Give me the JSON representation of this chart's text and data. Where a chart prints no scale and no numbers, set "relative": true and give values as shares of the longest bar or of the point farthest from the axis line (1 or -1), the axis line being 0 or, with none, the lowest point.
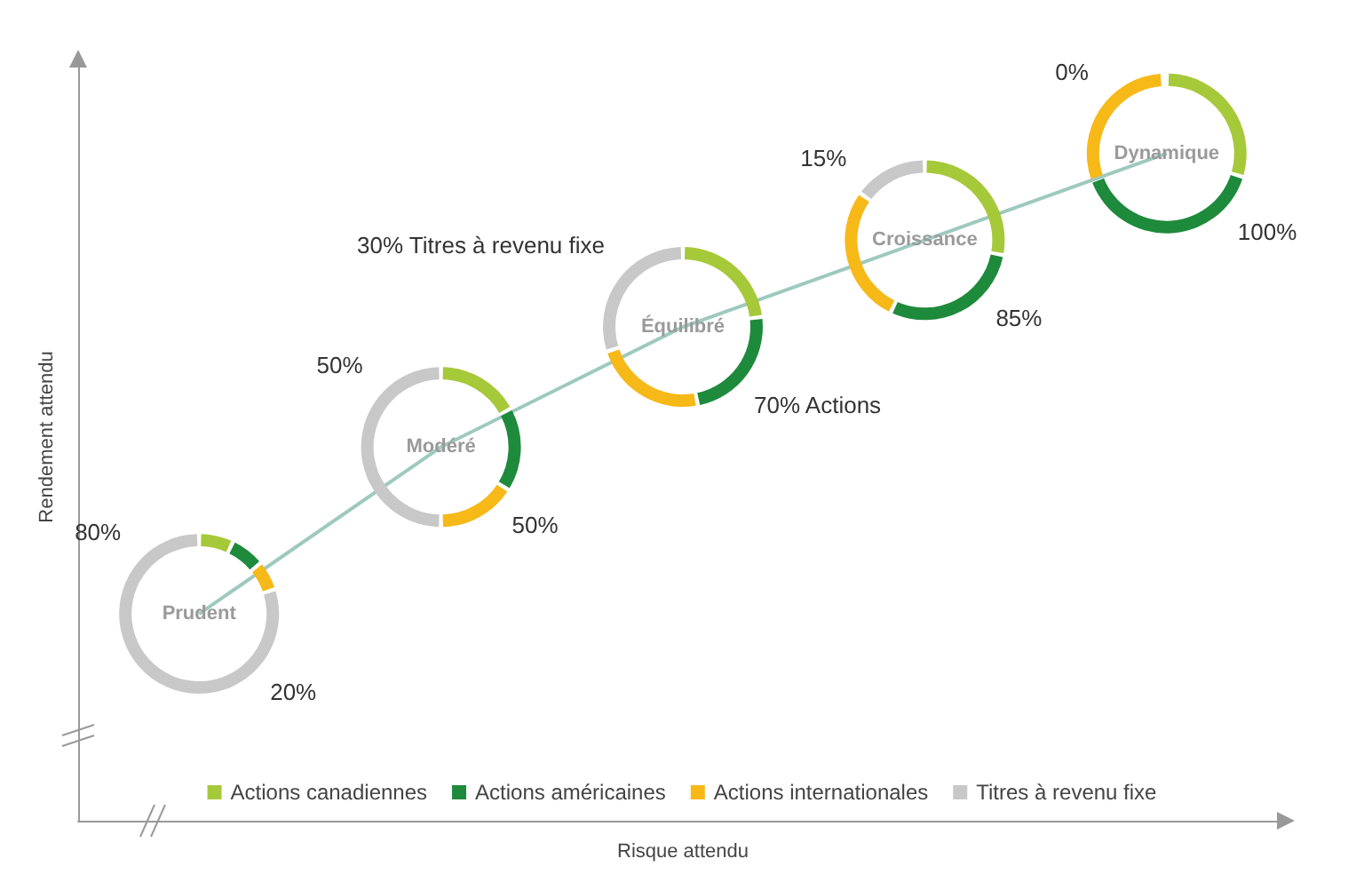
{
  "chart_data": [
    {
      "type": "line",
      "relative": true,
      "xlabel": "Risque attendu",
      "ylabel": "Rendement attendu",
      "categories": [
        null,
        null,
        null,
        null,
        null
      ],
      "series": [
        {
          "color": "#9ec9be",
          "values": [
            0.31,
            0.56,
            0.74,
            0.87,
            1
          ]
        }
      ]
    },
    {
      "type": "donut",
      "categories": [
        "Actions canadiennes",
        "Actions américaines",
        "Actions internationales",
        "Titres à revenu fixe"
      ],
      "colors": [
        "#a6c93a",
        "#1e8a3c",
        "#f7b918",
        "#c8c8c8"
      ],
      "legend": "bottom",
      "series": [
        {
          "name": "Prudent",
          "values": [
            7,
            7,
            6,
            80
          ]
        },
        {
          "name": "Modéré",
          "values": [
            17,
            17,
            16,
            50
          ]
        },
        {
          "name": "Équilibré",
          "values": [
            23,
            24,
            23,
            30
          ]
        },
        {
          "name": "Croissance",
          "values": [
            28,
            29,
            28,
            15
          ]
        },
        {
          "name": "Dynamique",
          "values": [
            30,
            40,
            30,
            0
          ]
        }
      ],
      "annotations": [
        "80%",
        "20%",
        "50%",
        "50%",
        "30% Titres à revenu fixe",
        "70% Actions",
        "15%",
        "85%",
        "0%",
        "100%"
      ]
    }
  ]
}
